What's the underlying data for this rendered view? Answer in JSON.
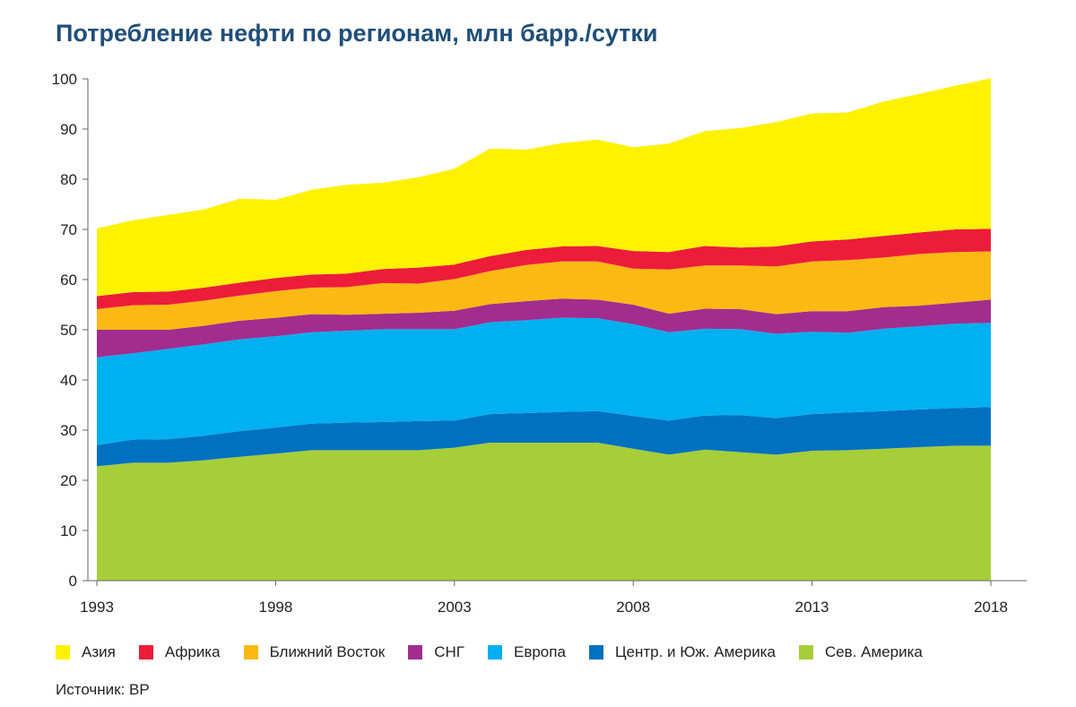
{
  "title": "Потребление нефти по регионам, млн барр./сутки",
  "source": "Источник: BP",
  "chart_data": {
    "type": "area",
    "stacked": true,
    "x": [
      1993,
      1994,
      1995,
      1996,
      1997,
      1998,
      1999,
      2000,
      2001,
      2002,
      2003,
      2004,
      2005,
      2006,
      2007,
      2008,
      2009,
      2010,
      2011,
      2012,
      2013,
      2014,
      2015,
      2016,
      2017,
      2018
    ],
    "xticks": [
      1993,
      1998,
      2003,
      2008,
      2013,
      2018
    ],
    "yticks": [
      0,
      10,
      20,
      30,
      40,
      50,
      60,
      70,
      80,
      90,
      100
    ],
    "ylim": [
      0,
      100
    ],
    "xlabel": "",
    "ylabel": "",
    "legend_position": "bottom",
    "grid": false,
    "series": [
      {
        "name": "Сев. Америка",
        "color": "#a6ce39",
        "values": [
          22.8,
          23.5,
          23.5,
          24,
          24.7,
          25.3,
          26,
          26,
          26,
          26,
          26.5,
          27.5,
          27.5,
          27.5,
          27.5,
          26.3,
          25.1,
          26.1,
          25.6,
          25.1,
          25.9,
          26,
          26.3,
          26.6,
          26.9,
          26.9
        ]
      },
      {
        "name": "Центр. и Юж. Америка",
        "color": "#0070c0",
        "values": [
          4.2,
          4.6,
          4.7,
          4.9,
          5.1,
          5.2,
          5.3,
          5.5,
          5.6,
          5.8,
          5.4,
          5.7,
          5.9,
          6.1,
          6.3,
          6.5,
          6.8,
          6.8,
          7.4,
          7.3,
          7.3,
          7.5,
          7.5,
          7.5,
          7.5,
          7.7
        ]
      },
      {
        "name": "Европа",
        "color": "#00b0f0",
        "values": [
          17.5,
          17.2,
          18,
          18.2,
          18.3,
          18.2,
          18.2,
          18.3,
          18.5,
          18.3,
          18.2,
          18.3,
          18.5,
          18.8,
          18.5,
          18.3,
          17.6,
          17.3,
          17.1,
          16.8,
          16.4,
          15.9,
          16.4,
          16.6,
          16.8,
          16.8
        ]
      },
      {
        "name": "СНГ",
        "color": "#a12d8f",
        "values": [
          5.5,
          4.7,
          3.8,
          3.7,
          3.7,
          3.7,
          3.6,
          3.2,
          3.1,
          3.3,
          3.7,
          3.6,
          3.8,
          3.8,
          3.7,
          3.9,
          3.7,
          4,
          4,
          3.9,
          4.1,
          4.3,
          4.3,
          4.1,
          4.2,
          4.6
        ]
      },
      {
        "name": "Ближний Восток",
        "color": "#fdb913",
        "values": [
          4.1,
          4.9,
          5,
          5,
          5,
          5.3,
          5.3,
          5.5,
          6.1,
          5.8,
          6.3,
          6.6,
          7.2,
          7.4,
          7.6,
          7.2,
          8.8,
          8.6,
          8.7,
          9.5,
          9.9,
          10.2,
          9.9,
          10.3,
          10.1,
          9.6
        ]
      },
      {
        "name": "Африка",
        "color": "#ed1c3a",
        "values": [
          2.6,
          2.6,
          2.6,
          2.6,
          2.6,
          2.6,
          2.6,
          2.7,
          2.8,
          3.2,
          2.9,
          3,
          3,
          3,
          3.1,
          3.5,
          3.5,
          3.9,
          3.6,
          4,
          4,
          4.1,
          4.3,
          4.3,
          4.5,
          4.5
        ]
      },
      {
        "name": "Азия",
        "color": "#fff200",
        "values": [
          13.5,
          14.3,
          15.3,
          15.6,
          16.7,
          15.6,
          16.9,
          17.7,
          17.2,
          18,
          19.1,
          21.4,
          20,
          20.6,
          21.2,
          20.7,
          21.6,
          22.9,
          23.8,
          24.8,
          25.5,
          25.3,
          26.8,
          27.6,
          28.6,
          30
        ]
      }
    ]
  }
}
